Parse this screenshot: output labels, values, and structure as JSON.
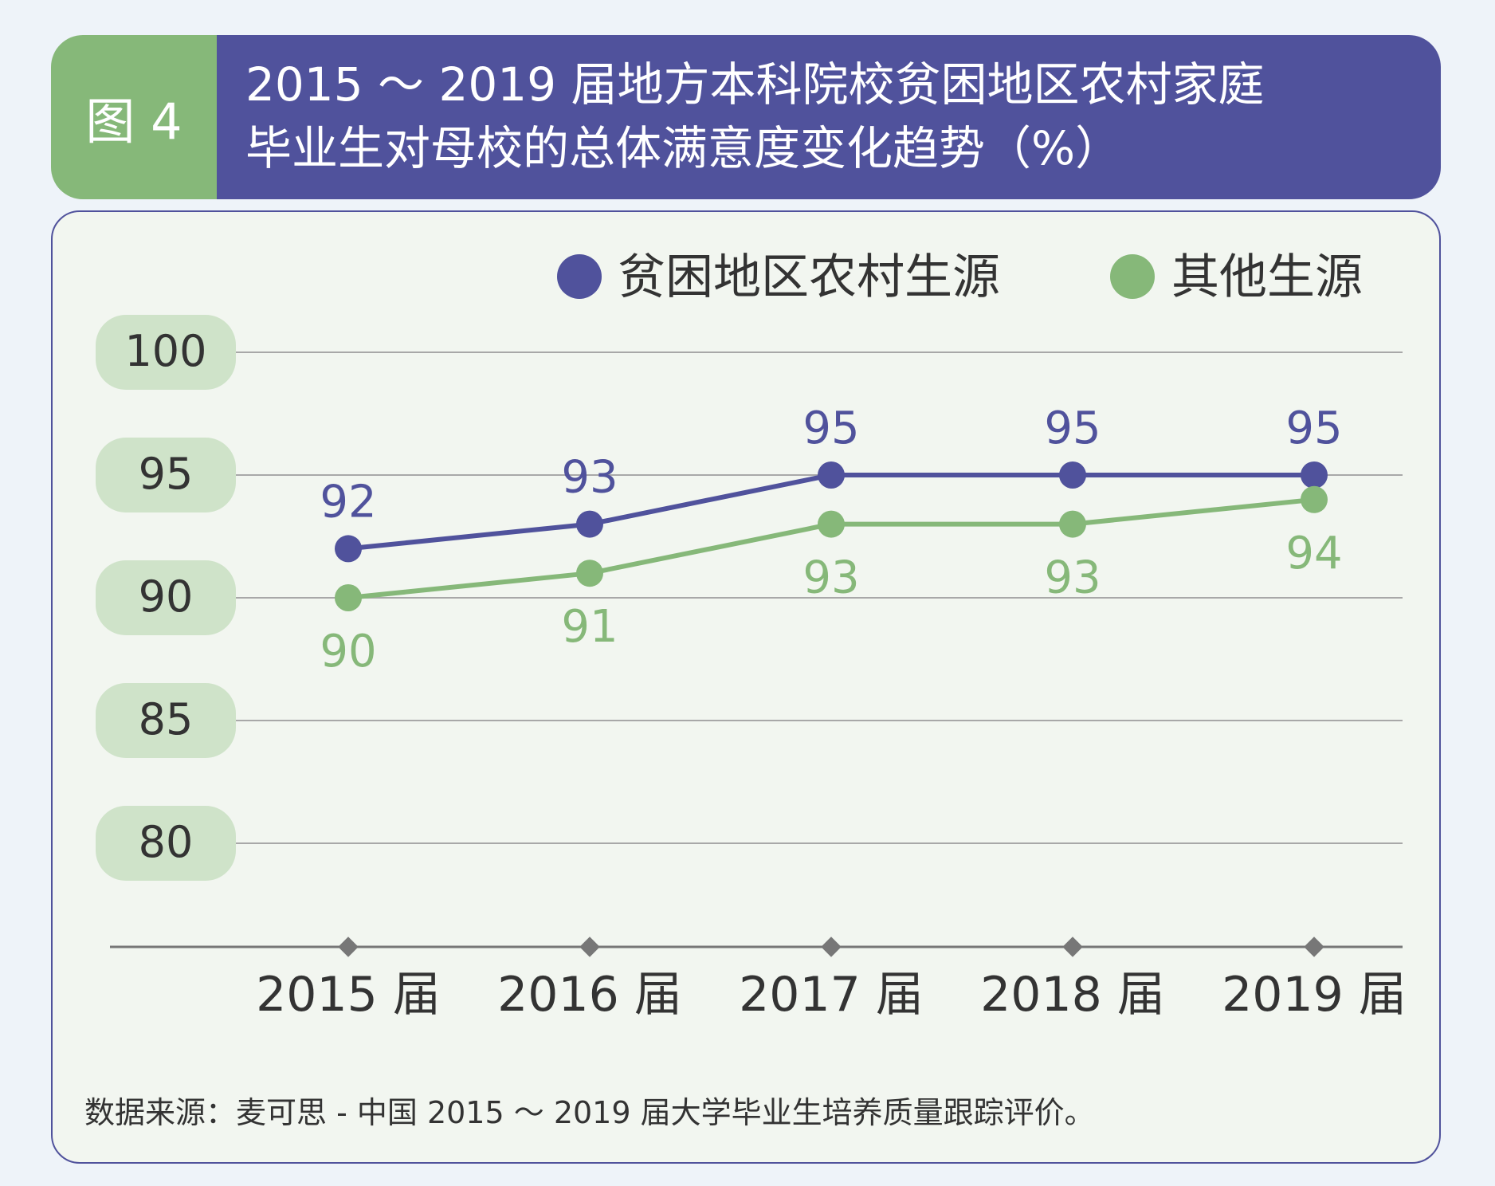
{
  "header": {
    "figure_label": "图 4",
    "title": "2015 ～ 2019 届地方本科院校贫困地区农村家庭\n毕业生对母校的总体满意度变化趋势（%）"
  },
  "colors": {
    "series_poor": "#50529c",
    "series_other": "#86b879",
    "header_green": "#86b879",
    "header_purple": "#50529c",
    "ytick_bg": "#cfe3c9"
  },
  "chart_data": {
    "type": "line",
    "title": "2015 ～ 2019 届地方本科院校贫困地区农村家庭毕业生对母校的总体满意度变化趋势（%）",
    "categories": [
      "2015 届",
      "2016 届",
      "2017 届",
      "2018 届",
      "2019 届"
    ],
    "series": [
      {
        "name": "贫困地区农村生源",
        "values": [
          92,
          93,
          95,
          95,
          95
        ],
        "value_labels": [
          "92",
          "93",
          "95",
          "95",
          "95"
        ],
        "label_position": "above"
      },
      {
        "name": "其他生源",
        "values": [
          90,
          91,
          93,
          93,
          94
        ],
        "value_labels": [
          "90",
          "91",
          "93",
          "93",
          "94"
        ],
        "label_position": "below"
      }
    ],
    "yticks": [
      "100",
      "95",
      "90",
      "85",
      "80"
    ],
    "ylim": [
      75,
      100
    ],
    "grid": true,
    "legend": "top-right",
    "xlabel": "",
    "ylabel": ""
  },
  "source": "数据来源：麦可思 - 中国 2015 ～ 2019 届大学毕业生培养质量跟踪评价。"
}
